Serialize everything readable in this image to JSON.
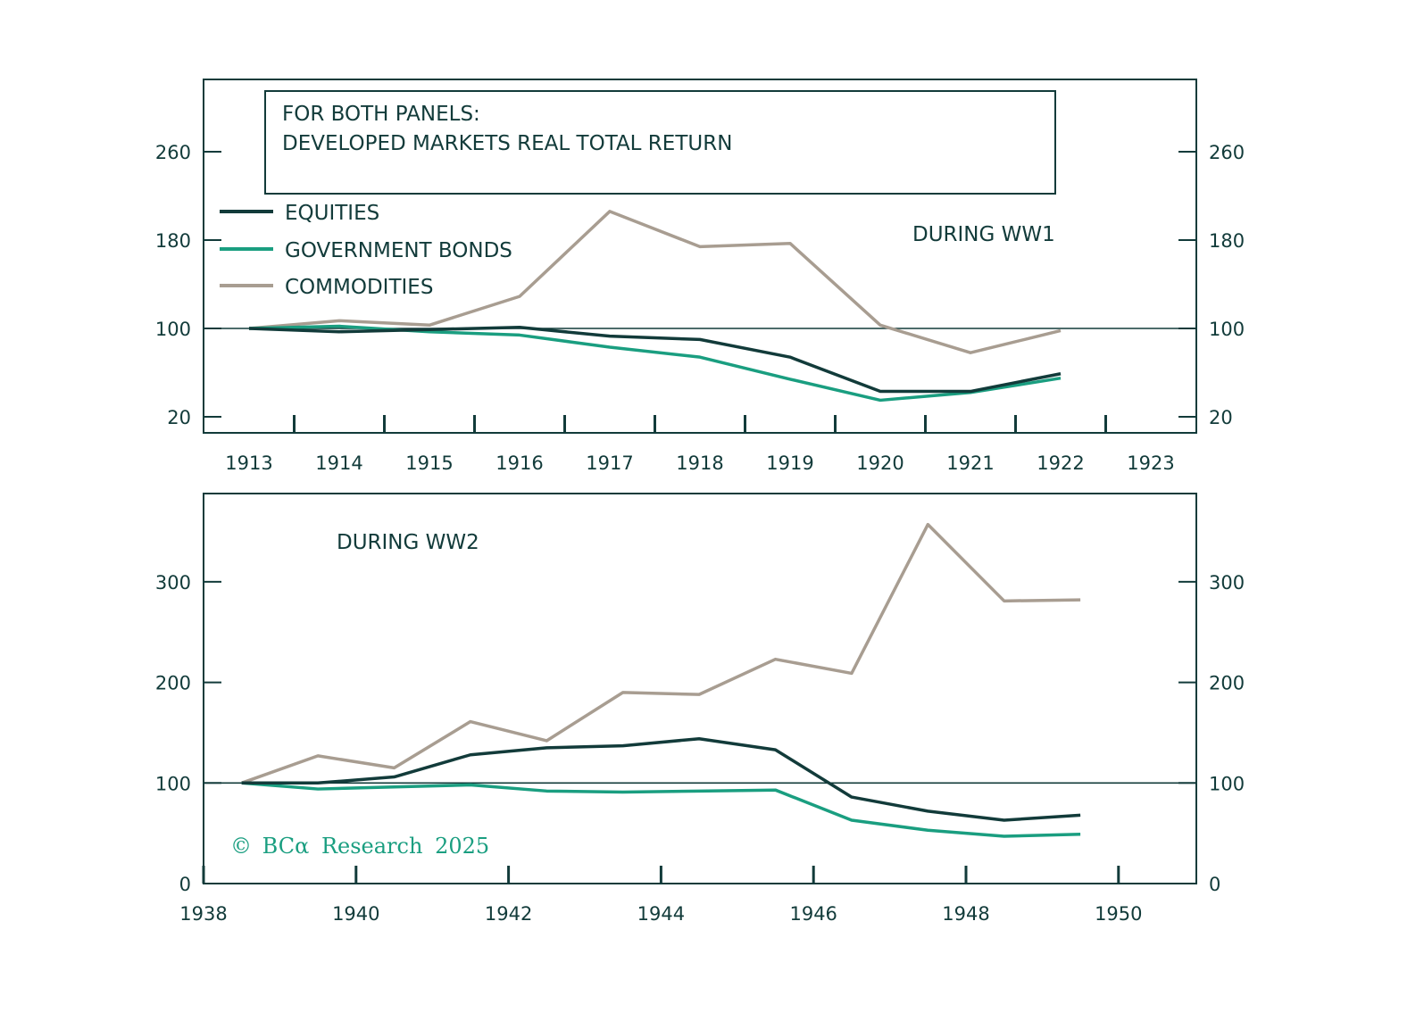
{
  "chart_data": [
    {
      "type": "line",
      "title": "DURING WW1",
      "header_box": [
        "FOR BOTH PANELS:",
        "DEVELOPED MARKETS REAL TOTAL RETURN"
      ],
      "x": [
        1913,
        1914,
        1915,
        1916,
        1917,
        1918,
        1919,
        1920,
        1921,
        1922
      ],
      "x_tick_labels": [
        "1913",
        "1914",
        "1915",
        "1916",
        "1917",
        "1918",
        "1919",
        "1920",
        "1921",
        "1922",
        "1923"
      ],
      "y_tick_labels": [
        "20",
        "100",
        "180",
        "260"
      ],
      "y_ticks": [
        20,
        100,
        180,
        260
      ],
      "ylim": [
        20,
        260
      ],
      "reference_line": 100,
      "legend_position": "top-left",
      "series": [
        {
          "name": "EQUITIES",
          "color": "#123b3a",
          "values": [
            100,
            97,
            99,
            101,
            93,
            90,
            74,
            43,
            43,
            59
          ]
        },
        {
          "name": "GOVERNMENT BONDS",
          "color": "#1a9e80",
          "values": [
            100,
            102,
            97,
            94,
            83,
            74,
            54,
            35,
            42,
            55
          ]
        },
        {
          "name": "COMMODITIES",
          "color": "#a89d91",
          "values": [
            100,
            107,
            103,
            129,
            206,
            174,
            177,
            103,
            78,
            98
          ]
        }
      ]
    },
    {
      "type": "line",
      "title": "DURING WW2",
      "x": [
        1938.5,
        1939.5,
        1940.5,
        1941.5,
        1942.5,
        1943.5,
        1944.5,
        1945.5,
        1946.5,
        1947.5,
        1948.5,
        1949.5
      ],
      "x_tick_labels": [
        "1938",
        "1940",
        "1942",
        "1944",
        "1946",
        "1948",
        "1950"
      ],
      "x_ticks": [
        1938,
        1940,
        1942,
        1944,
        1946,
        1948,
        1950
      ],
      "y_tick_labels": [
        "0",
        "100",
        "200",
        "300"
      ],
      "y_ticks": [
        0,
        100,
        200,
        300
      ],
      "ylim": [
        0,
        300
      ],
      "reference_line": 100,
      "series": [
        {
          "name": "EQUITIES",
          "color": "#123b3a",
          "values": [
            100,
            100,
            106,
            128,
            135,
            137,
            144,
            133,
            86,
            72,
            63,
            68
          ]
        },
        {
          "name": "GOVERNMENT BONDS",
          "color": "#1a9e80",
          "values": [
            100,
            94,
            96,
            98,
            92,
            91,
            92,
            93,
            63,
            53,
            47,
            49
          ]
        },
        {
          "name": "COMMODITIES",
          "color": "#a89d91",
          "values": [
            100,
            127,
            115,
            161,
            142,
            190,
            188,
            223,
            209,
            357,
            281,
            282
          ]
        }
      ]
    }
  ],
  "watermark": {
    "symbol": "©",
    "brand": "BCα",
    "text": "Research",
    "year": "2025",
    "color": "#1a9e80"
  },
  "axis_color": "#123b3a"
}
